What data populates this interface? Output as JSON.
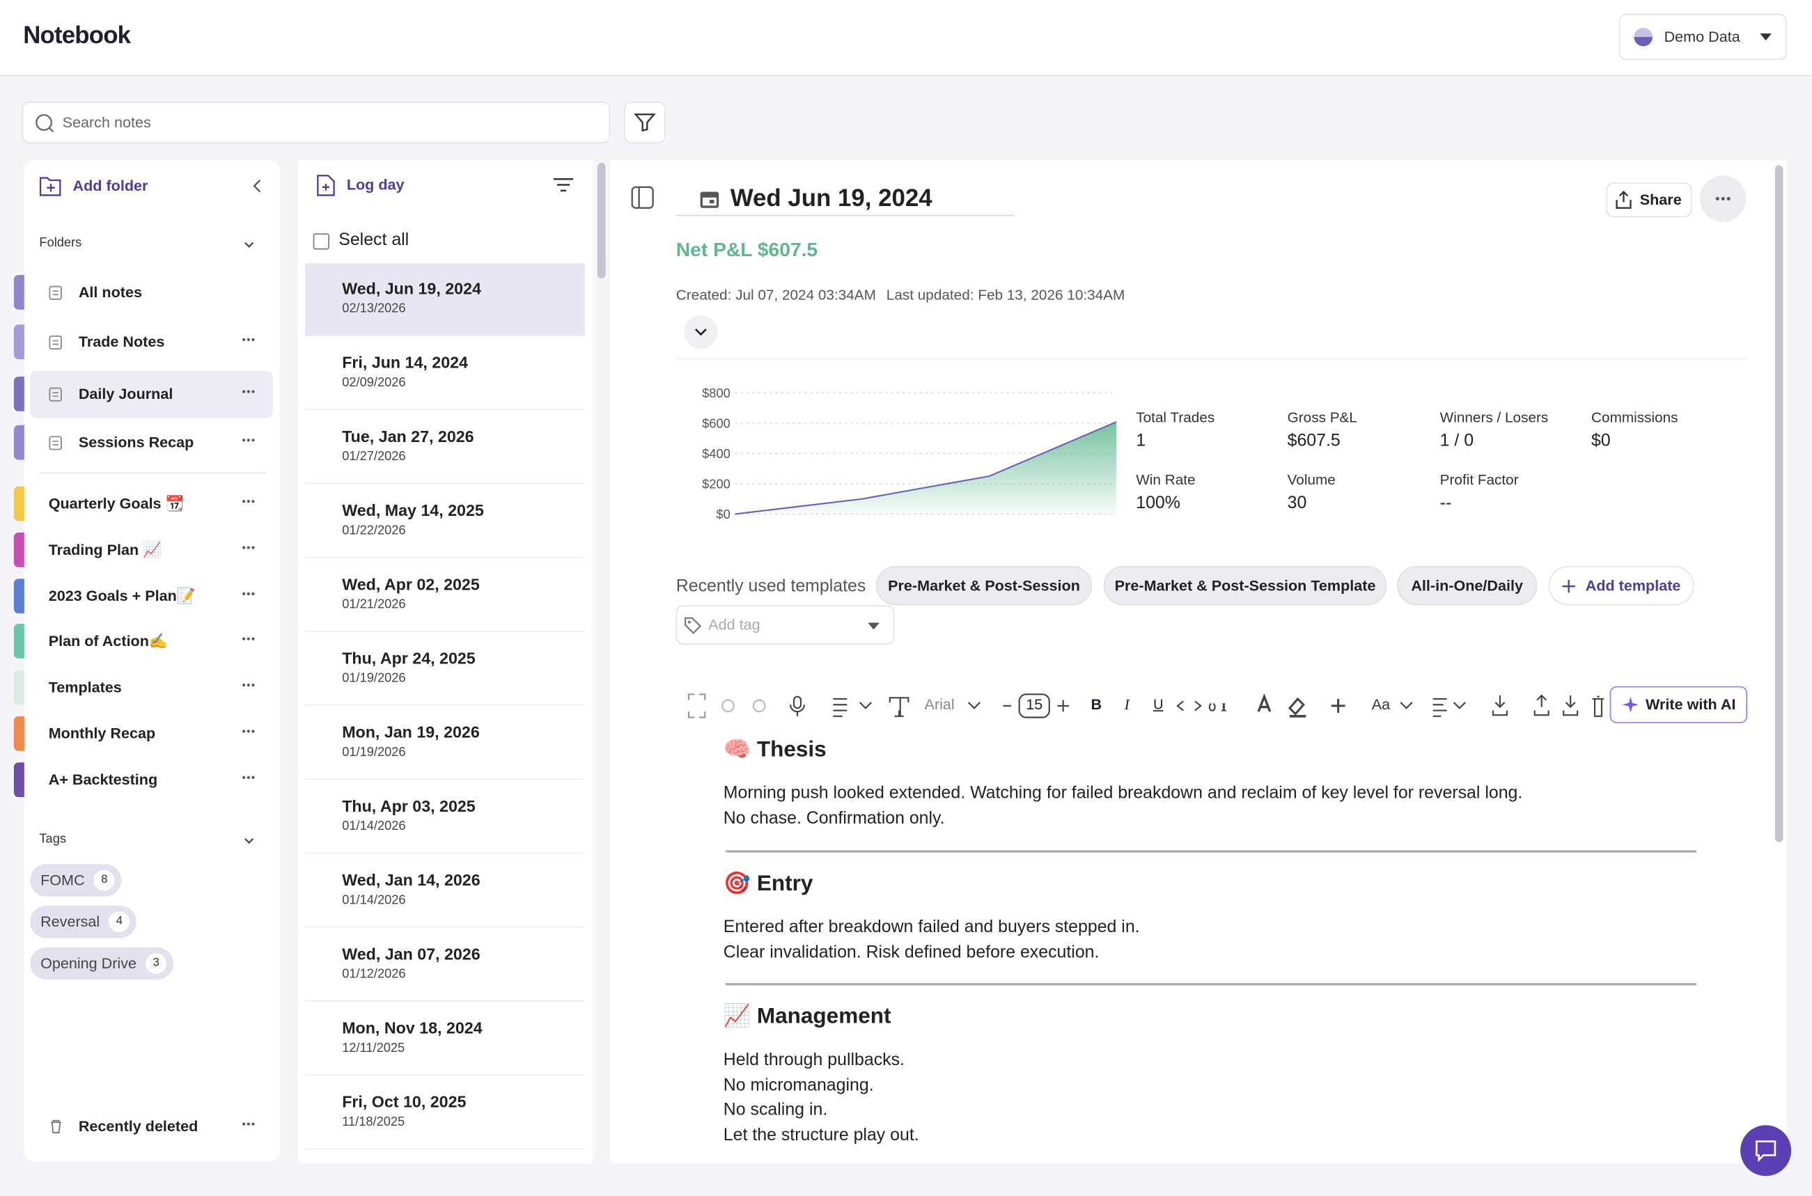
{
  "header": {
    "title": "Notebook",
    "account": "Demo Data"
  },
  "search": {
    "placeholder": "Search notes"
  },
  "sidebar": {
    "add_folder": "Add folder",
    "folders_label": "Folders",
    "folders": [
      {
        "name": "All notes",
        "color": "#8f86c9"
      },
      {
        "name": "Trade Notes",
        "color": "#a699d8"
      },
      {
        "name": "Daily Journal",
        "color": "#7d70bf"
      },
      {
        "name": "Sessions Recap",
        "color": "#9488cc"
      },
      {
        "name": "Quarterly Goals 📆",
        "color": "#f2c94c"
      },
      {
        "name": "Trading Plan 📈",
        "color": "#c94fb5"
      },
      {
        "name": "2023 Goals + Plan📝",
        "color": "#5b7fd6"
      },
      {
        "name": "Plan of Action✍️",
        "color": "#6cc5a4"
      },
      {
        "name": "Templates",
        "color": "#dfe9e4"
      },
      {
        "name": "Monthly Recap",
        "color": "#f08a4b"
      },
      {
        "name": "A+ Backtesting",
        "color": "#6d4fa6"
      }
    ],
    "tags_label": "Tags",
    "tags": [
      {
        "name": "FOMC",
        "count": 8
      },
      {
        "name": "Reversal",
        "count": 4
      },
      {
        "name": "Opening Drive",
        "count": 3
      }
    ],
    "recently_deleted": "Recently deleted"
  },
  "note_list": {
    "log_day": "Log day",
    "select_all": "Select all",
    "notes": [
      {
        "title": "Wed, Jun 19, 2024",
        "date": "02/13/2026"
      },
      {
        "title": "Fri, Jun 14, 2024",
        "date": "02/09/2026"
      },
      {
        "title": "Tue, Jan 27, 2026",
        "date": "01/27/2026"
      },
      {
        "title": "Wed, May 14, 2025",
        "date": "01/22/2026"
      },
      {
        "title": "Wed, Apr 02, 2025",
        "date": "01/21/2026"
      },
      {
        "title": "Thu, Apr 24, 2025",
        "date": "01/19/2026"
      },
      {
        "title": "Mon, Jan 19, 2026",
        "date": "01/19/2026"
      },
      {
        "title": "Thu, Apr 03, 2025",
        "date": "01/14/2026"
      },
      {
        "title": "Wed, Jan 14, 2026",
        "date": "01/14/2026"
      },
      {
        "title": "Wed, Jan 07, 2026",
        "date": "01/12/2026"
      },
      {
        "title": "Mon, Nov 18, 2024",
        "date": "12/11/2025"
      },
      {
        "title": "Fri, Oct 10, 2025",
        "date": "11/18/2025"
      }
    ]
  },
  "editor": {
    "date": "Wed Jun 19, 2024",
    "share": "Share",
    "net_pnl": "Net P&L $607.5",
    "created": "Created: Jul 07, 2024 03:34AM",
    "updated": "Last updated: Feb 13, 2026 10:34AM",
    "stats": [
      {
        "label": "Total Trades",
        "value": "1"
      },
      {
        "label": "Gross P&L",
        "value": "$607.5"
      },
      {
        "label": "Winners / Losers",
        "value": "1 / 0"
      },
      {
        "label": "Commissions",
        "value": "$0"
      },
      {
        "label": "Win Rate",
        "value": "100%"
      },
      {
        "label": "Volume",
        "value": "30"
      },
      {
        "label": "Profit Factor",
        "value": "--"
      }
    ],
    "templates_label": "Recently used templates",
    "templates": [
      "Pre-Market & Post-Session",
      "Pre-Market & Post-Session Template",
      "All-in-One/Daily"
    ],
    "add_template": "Add template",
    "add_tag": "Add tag",
    "toolbar": {
      "font": "Arial",
      "size": "15",
      "bold": "B",
      "italic": "I",
      "underline": "U",
      "case": "Aa",
      "ai": "Write with AI"
    },
    "sections": [
      {
        "heading": "🧠 Thesis",
        "lines": [
          "Morning push looked extended. Watching for failed breakdown and reclaim of key level for reversal long.",
          "No chase. Confirmation only."
        ]
      },
      {
        "heading": "🎯 Entry",
        "lines": [
          "Entered after breakdown failed and buyers stepped in.",
          "Clear invalidation. Risk defined before execution."
        ]
      },
      {
        "heading": "📈 Management",
        "lines": [
          "Held through pullbacks.",
          "No micromanaging.",
          "No scaling in.",
          "Let the structure play out."
        ]
      }
    ]
  },
  "chart_data": {
    "type": "area",
    "values": [
      0,
      100,
      250,
      607.5
    ],
    "color": "#5fb88f",
    "line_color": "#6b63b5",
    "ylim": [
      0,
      800
    ],
    "yticks": [
      {
        "value": 0,
        "label": "$0"
      },
      {
        "value": 200,
        "label": "$200"
      },
      {
        "value": 400,
        "label": "$400"
      },
      {
        "value": 600,
        "label": "$600"
      },
      {
        "value": 800,
        "label": "$800"
      }
    ],
    "grid": true
  }
}
